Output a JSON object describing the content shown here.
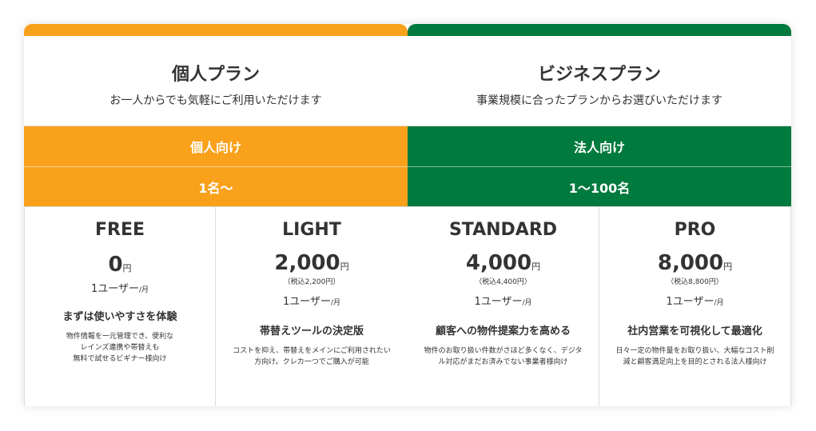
{
  "colors": {
    "personal": "#F9A11B",
    "business": "#007A3D"
  },
  "groups": [
    {
      "title": "個人プラン",
      "subtitle": "お一人からでも気軽にご利用いただけます",
      "target": "個人向け",
      "seats": "1名〜",
      "plans": [
        {
          "name": "FREE",
          "price": "0",
          "unit": "円",
          "tax": "",
          "per_user": "1ユーザー",
          "per_month": "/月",
          "catch": "まずは使いやすさを体験",
          "desc": [
            "物件情報を一元管理でき、便利な",
            "レインズ連携や帯替えも",
            "無料で試せるビギナー様向け"
          ]
        },
        {
          "name": "LIGHT",
          "price": "2,000",
          "unit": "円",
          "tax": "（税込2,200円）",
          "per_user": "1ユーザー",
          "per_month": "/月",
          "catch": "帯替えツールの決定版",
          "desc": [
            "コストを抑え、帯替えをメインにご利用されたい",
            "方向け。クレカ一つでご購入が可能"
          ]
        }
      ]
    },
    {
      "title": "ビジネスプラン",
      "subtitle": "事業規模に合ったプランからお選びいただけます",
      "target": "法人向け",
      "seats": "1〜100名",
      "plans": [
        {
          "name": "STANDARD",
          "price": "4,000",
          "unit": "円",
          "tax": "（税込4,400円）",
          "per_user": "1ユーザー",
          "per_month": "/月",
          "catch": "顧客への物件提案力を高める",
          "desc": [
            "物件のお取り扱い件数がさほど多くなく、デジタ",
            "ル対応がまだお済みでない事業者様向け"
          ]
        },
        {
          "name": "PRO",
          "price": "8,000",
          "unit": "円",
          "tax": "（税込8,800円）",
          "per_user": "1ユーザー",
          "per_month": "/月",
          "catch": "社内営業を可視化して最適化",
          "desc": [
            "日々一定の物件量をお取り扱い、大幅なコスト削",
            "減と顧客満足向上を目的とされる法人様向け"
          ]
        }
      ]
    }
  ]
}
